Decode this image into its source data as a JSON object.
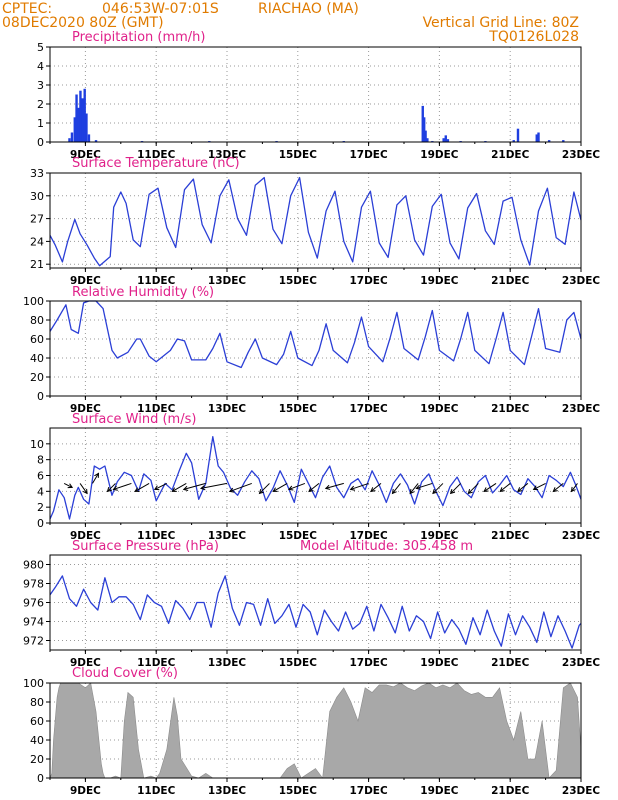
{
  "header": {
    "source": "CPTEC:",
    "location_coords": "046:53W-07:01S",
    "location_name": "RIACHAO (MA)",
    "run_time": "08DEC2020 80Z (GMT)",
    "grid_note": "Vertical Grid Line: 80Z",
    "model": "TQ0126L028"
  },
  "x_ticks": [
    "9DEC",
    "11DEC",
    "13DEC",
    "15DEC",
    "17DEC",
    "19DEC",
    "21DEC",
    "23DEC"
  ],
  "colors": {
    "header": "#e07b00",
    "panel_title": "#e0218a",
    "line": "#2b3fd6",
    "bar": "#1f3fe0",
    "cloud": "#a8a8a8",
    "arrow": "#000000"
  },
  "chart_data": [
    {
      "id": "precip",
      "type": "bar",
      "title": "Precipitation (mm/h)",
      "ylim": [
        0,
        5
      ],
      "yticks": [
        0,
        1,
        2,
        3,
        4,
        5
      ],
      "x_domain_days": [
        8.0,
        23.0
      ],
      "x": [
        8.55,
        8.62,
        8.7,
        8.75,
        8.8,
        8.86,
        8.92,
        8.98,
        9.03,
        9.1,
        9.3,
        10.6,
        12.5,
        14.4,
        16.3,
        18.53,
        18.57,
        18.61,
        18.66,
        18.8,
        19.12,
        19.18,
        19.24,
        19.6,
        20.3,
        21.1,
        21.22,
        21.75,
        21.8,
        22.1,
        22.5
      ],
      "values": [
        0.2,
        0.5,
        1.3,
        2.5,
        1.8,
        2.7,
        2.3,
        2.8,
        1.5,
        0.4,
        0.1,
        0.05,
        0.05,
        0.05,
        0.05,
        1.9,
        1.3,
        0.6,
        0.2,
        0.05,
        0.2,
        0.35,
        0.15,
        0.05,
        0.05,
        0.1,
        0.7,
        0.4,
        0.5,
        0.1,
        0.1
      ]
    },
    {
      "id": "temp",
      "type": "line",
      "title": "Surface Temperature (nC)",
      "ylim": [
        20.5,
        33
      ],
      "yticks": [
        21,
        24,
        27,
        30,
        33
      ],
      "x_domain_days": [
        8.0,
        23.0
      ],
      "x": [
        8.0,
        8.15,
        8.35,
        8.5,
        8.7,
        8.85,
        9.05,
        9.25,
        9.4,
        9.7,
        9.8,
        10.0,
        10.15,
        10.35,
        10.55,
        10.8,
        11.05,
        11.3,
        11.55,
        11.8,
        12.05,
        12.3,
        12.55,
        12.8,
        13.05,
        13.3,
        13.55,
        13.8,
        14.05,
        14.3,
        14.55,
        14.8,
        15.05,
        15.3,
        15.55,
        15.8,
        16.05,
        16.3,
        16.55,
        16.8,
        17.05,
        17.3,
        17.55,
        17.8,
        18.05,
        18.3,
        18.55,
        18.8,
        19.05,
        19.3,
        19.55,
        19.8,
        20.05,
        20.3,
        20.55,
        20.8,
        21.05,
        21.3,
        21.55,
        21.8,
        22.05,
        22.3,
        22.55,
        22.8,
        23.0
      ],
      "values": [
        24.8,
        23.5,
        21.3,
        24.0,
        26.9,
        25.0,
        23.5,
        21.8,
        20.8,
        22.0,
        28.5,
        30.5,
        29.0,
        24.2,
        23.3,
        30.2,
        31.0,
        25.8,
        23.2,
        30.8,
        32.2,
        26.2,
        23.8,
        30.0,
        32.1,
        27.0,
        24.8,
        31.4,
        32.4,
        25.6,
        23.7,
        30.0,
        32.4,
        25.2,
        21.8,
        28.0,
        30.6,
        24.0,
        21.3,
        28.5,
        30.6,
        23.8,
        21.9,
        28.8,
        30.0,
        24.2,
        22.2,
        28.6,
        30.2,
        23.8,
        21.7,
        28.4,
        30.3,
        25.4,
        23.6,
        29.3,
        29.8,
        24.2,
        20.9,
        28.0,
        31.0,
        24.5,
        23.6,
        30.5,
        26.8
      ]
    },
    {
      "id": "rh",
      "type": "line",
      "title": "Relative Humidity (%)",
      "ylim": [
        0,
        100
      ],
      "yticks": [
        0,
        20,
        40,
        60,
        80,
        100
      ],
      "x_domain_days": [
        8.0,
        23.0
      ],
      "x": [
        8.0,
        8.2,
        8.45,
        8.6,
        8.8,
        8.95,
        9.1,
        9.3,
        9.5,
        9.75,
        9.9,
        10.2,
        10.45,
        10.55,
        10.8,
        11.0,
        11.4,
        11.6,
        11.8,
        12.0,
        12.4,
        12.6,
        12.8,
        13.0,
        13.4,
        13.6,
        13.8,
        14.0,
        14.4,
        14.6,
        14.8,
        15.0,
        15.4,
        15.6,
        15.8,
        16.0,
        16.4,
        16.6,
        16.8,
        17.0,
        17.4,
        17.6,
        17.8,
        18.0,
        18.4,
        18.6,
        18.8,
        19.0,
        19.4,
        19.6,
        19.8,
        20.0,
        20.4,
        20.6,
        20.8,
        21.0,
        21.4,
        21.6,
        21.8,
        22.0,
        22.4,
        22.6,
        22.8,
        23.0
      ],
      "values": [
        68,
        80,
        96,
        70,
        66,
        98,
        100,
        100,
        92,
        48,
        40,
        46,
        60,
        60,
        42,
        36,
        48,
        60,
        58,
        38,
        38,
        50,
        66,
        36,
        30,
        46,
        60,
        40,
        33,
        44,
        68,
        40,
        32,
        48,
        76,
        48,
        35,
        56,
        83,
        52,
        36,
        60,
        88,
        50,
        38,
        62,
        90,
        48,
        37,
        60,
        88,
        48,
        34,
        60,
        88,
        48,
        33,
        62,
        92,
        50,
        46,
        80,
        88,
        60
      ]
    },
    {
      "id": "wind",
      "type": "line",
      "title": "Surface Wind (m/s)",
      "ylim": [
        0,
        12
      ],
      "yticks": [
        0,
        2,
        4,
        6,
        8,
        10
      ],
      "x_domain_days": [
        8.0,
        23.0
      ],
      "x": [
        8.0,
        8.1,
        8.25,
        8.4,
        8.55,
        8.7,
        8.8,
        8.95,
        9.1,
        9.25,
        9.4,
        9.55,
        9.75,
        9.9,
        10.1,
        10.3,
        10.5,
        10.65,
        10.85,
        11.0,
        11.25,
        11.45,
        11.65,
        11.85,
        12.0,
        12.2,
        12.4,
        12.6,
        12.75,
        12.9,
        13.1,
        13.3,
        13.5,
        13.7,
        13.9,
        14.1,
        14.3,
        14.5,
        14.7,
        14.9,
        15.1,
        15.3,
        15.5,
        15.7,
        15.9,
        16.1,
        16.3,
        16.5,
        16.7,
        16.9,
        17.1,
        17.3,
        17.5,
        17.7,
        17.9,
        18.1,
        18.3,
        18.5,
        18.7,
        18.9,
        19.1,
        19.3,
        19.5,
        19.7,
        19.9,
        20.1,
        20.3,
        20.5,
        20.7,
        20.9,
        21.1,
        21.3,
        21.5,
        21.7,
        21.9,
        22.1,
        22.3,
        22.5,
        22.7,
        22.85,
        23.0
      ],
      "values": [
        0.5,
        1.5,
        4.2,
        3.2,
        0.5,
        3.5,
        4.5,
        3.0,
        2.4,
        7.2,
        6.8,
        7.2,
        3.5,
        5.2,
        6.4,
        6.0,
        4.0,
        6.2,
        5.4,
        2.8,
        5.0,
        4.2,
        6.6,
        8.8,
        7.6,
        3.0,
        5.0,
        10.9,
        7.2,
        6.4,
        4.4,
        3.5,
        5.2,
        6.6,
        5.6,
        2.8,
        4.4,
        6.6,
        4.8,
        2.6,
        6.8,
        5.0,
        3.2,
        5.8,
        7.2,
        4.5,
        3.2,
        5.0,
        5.6,
        4.2,
        6.6,
        4.8,
        2.6,
        5.0,
        6.2,
        4.8,
        2.4,
        5.2,
        6.2,
        4.0,
        2.2,
        4.6,
        5.8,
        4.0,
        3.2,
        5.2,
        6.0,
        3.8,
        4.8,
        6.0,
        4.2,
        3.6,
        5.6,
        4.6,
        3.2,
        6.0,
        5.4,
        4.6,
        6.4,
        4.8,
        3.0
      ],
      "arrows": [
        {
          "day": 8.4,
          "dx": 8,
          "dy": 4
        },
        {
          "day": 8.85,
          "dx": 7,
          "dy": 10
        },
        {
          "day": 9.2,
          "dx": 6,
          "dy": -10
        },
        {
          "day": 9.85,
          "dx": -8,
          "dy": 8
        },
        {
          "day": 10.3,
          "dx": -18,
          "dy": 6
        },
        {
          "day": 10.8,
          "dx": -14,
          "dy": 8
        },
        {
          "day": 11.3,
          "dx": -12,
          "dy": 6
        },
        {
          "day": 11.85,
          "dx": -14,
          "dy": 8
        },
        {
          "day": 12.4,
          "dx": -22,
          "dy": 6
        },
        {
          "day": 13.0,
          "dx": -26,
          "dy": 5
        },
        {
          "day": 13.7,
          "dx": -22,
          "dy": 8
        },
        {
          "day": 14.2,
          "dx": -10,
          "dy": 10
        },
        {
          "day": 14.7,
          "dx": -14,
          "dy": 8
        },
        {
          "day": 15.2,
          "dx": -16,
          "dy": 6
        },
        {
          "day": 15.6,
          "dx": -10,
          "dy": 8
        },
        {
          "day": 16.3,
          "dx": -18,
          "dy": 5
        },
        {
          "day": 17.0,
          "dx": -18,
          "dy": 6
        },
        {
          "day": 17.35,
          "dx": -10,
          "dy": 8
        },
        {
          "day": 17.9,
          "dx": -8,
          "dy": 10
        },
        {
          "day": 18.4,
          "dx": -8,
          "dy": 10
        },
        {
          "day": 18.8,
          "dx": -16,
          "dy": 5
        },
        {
          "day": 19.1,
          "dx": -10,
          "dy": 10
        },
        {
          "day": 19.6,
          "dx": -10,
          "dy": 10
        },
        {
          "day": 20.1,
          "dx": -10,
          "dy": 10
        },
        {
          "day": 20.6,
          "dx": -12,
          "dy": 8
        },
        {
          "day": 21.0,
          "dx": -10,
          "dy": 8
        },
        {
          "day": 21.5,
          "dx": -10,
          "dy": 8
        },
        {
          "day": 22.0,
          "dx": -12,
          "dy": 6
        },
        {
          "day": 22.5,
          "dx": -10,
          "dy": 8
        },
        {
          "day": 22.9,
          "dx": -6,
          "dy": 8
        }
      ]
    },
    {
      "id": "pressure",
      "type": "line",
      "title": "Surface Pressure (hPa)",
      "annotation": "Model Altitude: 305.458 m",
      "ylim": [
        971,
        981
      ],
      "yticks": [
        972,
        974,
        976,
        978,
        980
      ],
      "x_domain_days": [
        8.0,
        23.0
      ],
      "x": [
        8.0,
        8.15,
        8.35,
        8.55,
        8.75,
        8.95,
        9.15,
        9.35,
        9.55,
        9.75,
        9.95,
        10.15,
        10.35,
        10.55,
        10.75,
        10.95,
        11.15,
        11.35,
        11.55,
        11.75,
        11.95,
        12.15,
        12.35,
        12.55,
        12.75,
        12.95,
        13.15,
        13.35,
        13.55,
        13.75,
        13.95,
        14.15,
        14.35,
        14.55,
        14.75,
        14.95,
        15.15,
        15.35,
        15.55,
        15.75,
        15.95,
        16.15,
        16.35,
        16.55,
        16.75,
        16.95,
        17.15,
        17.35,
        17.55,
        17.75,
        17.95,
        18.15,
        18.35,
        18.55,
        18.75,
        18.95,
        19.15,
        19.35,
        19.55,
        19.75,
        19.95,
        20.15,
        20.35,
        20.55,
        20.75,
        20.95,
        21.15,
        21.35,
        21.55,
        21.75,
        21.95,
        22.15,
        22.35,
        22.55,
        22.75,
        22.95,
        23.0
      ],
      "values": [
        976.8,
        977.6,
        978.8,
        976.4,
        975.6,
        977.4,
        976.0,
        975.2,
        978.6,
        976.0,
        976.6,
        976.6,
        975.8,
        974.2,
        976.8,
        976.0,
        975.6,
        973.8,
        976.2,
        975.4,
        974.2,
        976.0,
        976.0,
        973.4,
        977.0,
        978.8,
        975.4,
        973.6,
        976.0,
        975.8,
        973.6,
        976.4,
        973.8,
        974.6,
        975.8,
        973.4,
        975.8,
        975.0,
        972.6,
        975.2,
        974.0,
        973.0,
        975.0,
        973.2,
        973.8,
        975.6,
        973.0,
        975.8,
        974.4,
        972.8,
        975.6,
        973.0,
        974.6,
        974.0,
        972.2,
        975.0,
        972.8,
        974.2,
        973.2,
        971.6,
        974.4,
        972.6,
        975.2,
        973.0,
        971.4,
        974.8,
        972.6,
        974.6,
        973.4,
        971.8,
        975.0,
        972.4,
        974.6,
        973.0,
        971.2,
        973.6,
        973.8
      ]
    },
    {
      "id": "cloud",
      "type": "area",
      "title": "Cloud Cover (%)",
      "ylim": [
        0,
        100
      ],
      "yticks": [
        0,
        20,
        40,
        60,
        80,
        100
      ],
      "x_domain_days": [
        8.0,
        23.0
      ],
      "x": [
        8.0,
        8.05,
        8.1,
        8.2,
        8.25,
        8.3,
        8.45,
        8.6,
        8.8,
        9.0,
        9.15,
        9.3,
        9.45,
        9.5,
        9.55,
        9.7,
        9.85,
        10.0,
        10.1,
        10.2,
        10.35,
        10.5,
        10.65,
        10.85,
        11.0,
        11.1,
        11.3,
        11.5,
        11.6,
        11.7,
        11.9,
        12.0,
        12.2,
        12.4,
        12.6,
        12.8,
        13.0,
        13.4,
        13.8,
        14.2,
        14.5,
        14.7,
        14.9,
        15.1,
        15.3,
        15.5,
        15.7,
        15.9,
        16.1,
        16.3,
        16.5,
        16.7,
        16.9,
        17.1,
        17.3,
        17.5,
        17.7,
        17.9,
        18.1,
        18.3,
        18.5,
        18.7,
        18.9,
        19.1,
        19.3,
        19.5,
        19.7,
        19.9,
        20.1,
        20.3,
        20.5,
        20.7,
        20.9,
        21.1,
        21.3,
        21.5,
        21.7,
        21.9,
        22.1,
        22.3,
        22.5,
        22.7,
        22.9,
        23.0
      ],
      "values": [
        0,
        5,
        40,
        85,
        95,
        100,
        100,
        100,
        100,
        95,
        100,
        70,
        15,
        5,
        0,
        0,
        2,
        0,
        60,
        90,
        85,
        30,
        0,
        2,
        0,
        5,
        30,
        85,
        65,
        20,
        8,
        2,
        0,
        5,
        0,
        0,
        0,
        0,
        0,
        0,
        0,
        10,
        15,
        0,
        5,
        10,
        0,
        70,
        85,
        95,
        80,
        60,
        95,
        90,
        98,
        98,
        96,
        100,
        95,
        92,
        97,
        100,
        95,
        98,
        95,
        100,
        92,
        88,
        90,
        85,
        85,
        95,
        60,
        40,
        70,
        20,
        20,
        60,
        0,
        8,
        95,
        100,
        85,
        30
      ]
    }
  ]
}
